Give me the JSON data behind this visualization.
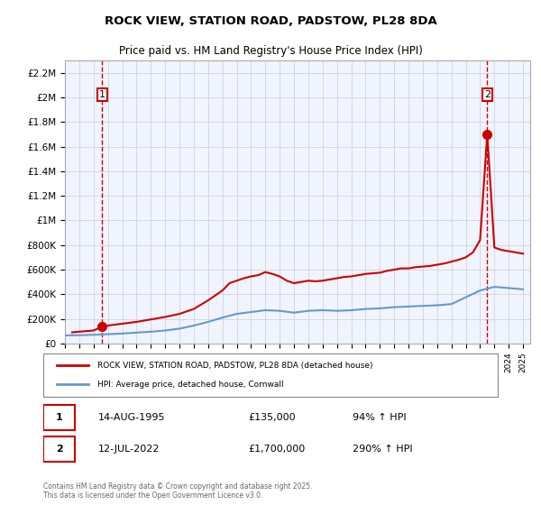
{
  "title": "ROCK VIEW, STATION ROAD, PADSTOW, PL28 8DA",
  "subtitle": "Price paid vs. HM Land Registry's House Price Index (HPI)",
  "legend_label1": "ROCK VIEW, STATION ROAD, PADSTOW, PL28 8DA (detached house)",
  "legend_label2": "HPI: Average price, detached house, Cornwall",
  "transaction1_label": "1",
  "transaction1_date": "14-AUG-1995",
  "transaction1_price": "£135,000",
  "transaction1_hpi": "94% ↑ HPI",
  "transaction2_label": "2",
  "transaction2_date": "12-JUL-2022",
  "transaction2_price": "£1,700,000",
  "transaction2_hpi": "290% ↑ HPI",
  "footnote": "Contains HM Land Registry data © Crown copyright and database right 2025.\nThis data is licensed under the Open Government Licence v3.0.",
  "price_color": "#cc0000",
  "hpi_color": "#6699cc",
  "bg_color": "#f0f4ff",
  "grid_color": "#cccccc",
  "ylim": [
    0,
    2300000
  ],
  "yticks": [
    0,
    200000,
    400000,
    600000,
    800000,
    1000000,
    1200000,
    1400000,
    1600000,
    1800000,
    2000000,
    2200000
  ],
  "xmin": 1993.0,
  "xmax": 2025.5,
  "transaction1_x": 1995.6,
  "transaction1_y": 135000,
  "transaction2_x": 2022.5,
  "transaction2_y": 1700000,
  "hpi_years": [
    1993,
    1994,
    1995,
    1996,
    1997,
    1998,
    1999,
    2000,
    2001,
    2002,
    2003,
    2004,
    2005,
    2006,
    2007,
    2008,
    2009,
    2010,
    2011,
    2012,
    2013,
    2014,
    2015,
    2016,
    2017,
    2018,
    2019,
    2020,
    2021,
    2022,
    2023,
    2024,
    2025
  ],
  "hpi_values": [
    65000,
    67000,
    70000,
    75000,
    80000,
    88000,
    95000,
    105000,
    120000,
    145000,
    175000,
    210000,
    240000,
    255000,
    270000,
    265000,
    250000,
    265000,
    270000,
    265000,
    270000,
    280000,
    285000,
    295000,
    300000,
    305000,
    310000,
    320000,
    375000,
    430000,
    460000,
    450000,
    440000
  ],
  "price_years": [
    1993.5,
    1994,
    1995,
    1995.6,
    1996,
    1997,
    1998,
    1999,
    2000,
    2001,
    2002,
    2003,
    2004,
    2004.5,
    2005,
    2005.5,
    2006,
    2006.5,
    2007,
    2007.5,
    2008,
    2008.5,
    2009,
    2009.5,
    2010,
    2010.5,
    2011,
    2011.5,
    2012,
    2012.5,
    2013,
    2013.5,
    2014,
    2014.5,
    2015,
    2015.5,
    2016,
    2016.5,
    2017,
    2017.5,
    2018,
    2018.5,
    2019,
    2019.5,
    2020,
    2020.5,
    2021,
    2021.5,
    2022,
    2022.5,
    2023,
    2023.5,
    2024,
    2024.5,
    2025
  ],
  "price_values": [
    90000,
    95000,
    105000,
    135000,
    145000,
    160000,
    175000,
    195000,
    215000,
    240000,
    280000,
    350000,
    430000,
    490000,
    510000,
    530000,
    545000,
    555000,
    580000,
    565000,
    545000,
    510000,
    490000,
    500000,
    510000,
    505000,
    510000,
    520000,
    530000,
    540000,
    545000,
    555000,
    565000,
    570000,
    575000,
    590000,
    600000,
    610000,
    610000,
    620000,
    625000,
    630000,
    640000,
    650000,
    665000,
    680000,
    700000,
    740000,
    840000,
    1700000,
    780000,
    760000,
    750000,
    740000,
    730000
  ]
}
